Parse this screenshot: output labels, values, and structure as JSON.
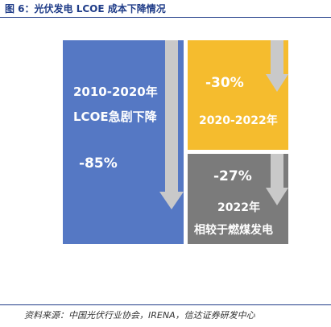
{
  "title": "图 6：光伏发电 LCOE 成本下降情况",
  "panels": {
    "period": {
      "line1": "2010-2020年",
      "line2": "LCOE急剧下降",
      "value": "-85%",
      "color": "#5578c4"
    },
    "recent": {
      "value": "-30%",
      "line1": "2020-2022年",
      "color": "#f5bc2e"
    },
    "fossil": {
      "value": "-27%",
      "line1": "2022年",
      "line2": "相较于燃煤发电",
      "color": "#7b7b7b"
    }
  },
  "arrow_color": "#c9c9c9",
  "source": "资料来源：中国光伏行业协会，IRENA，信达证券研发中心"
}
